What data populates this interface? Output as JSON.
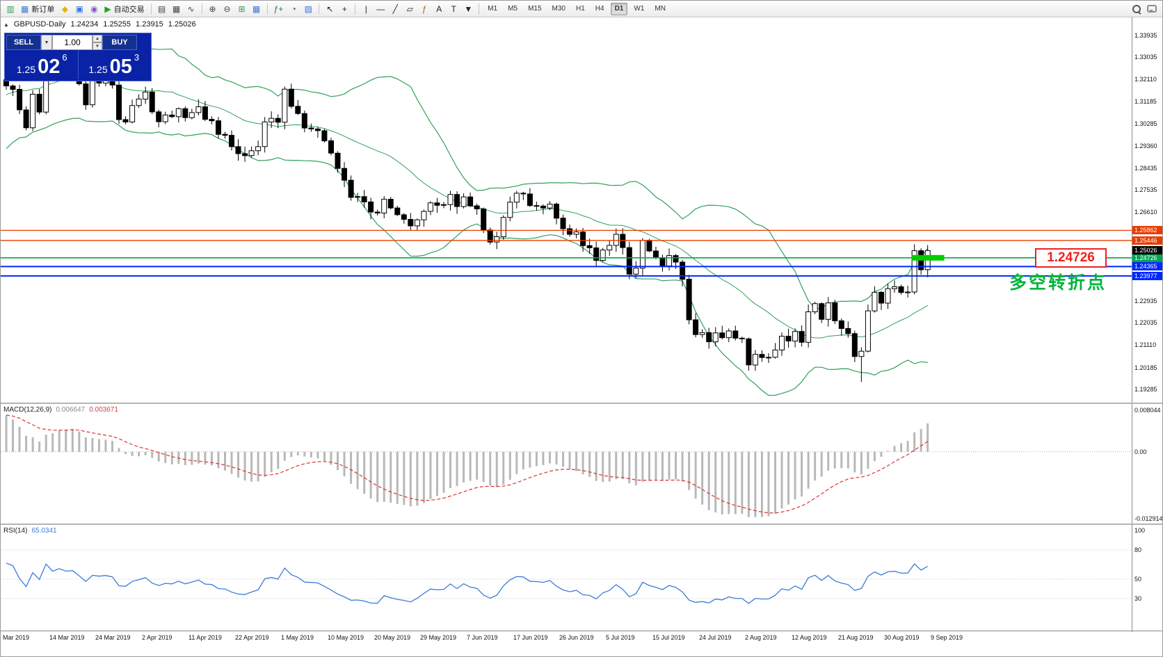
{
  "toolbar": {
    "items": [
      {
        "name": "terminal-icon",
        "glyph": "▥",
        "color": "#2e9e50"
      },
      {
        "name": "new-order-button",
        "glyph": "▦",
        "color": "#3a78d8",
        "label": "新订单"
      },
      {
        "name": "metaeditor-icon",
        "glyph": "◆",
        "color": "#e8b400"
      },
      {
        "name": "market-watch-icon",
        "glyph": "▣",
        "color": "#3a78d8"
      },
      {
        "name": "community-icon",
        "glyph": "◉",
        "color": "#8058c8"
      },
      {
        "name": "autotrading-button",
        "glyph": "▶",
        "color": "#1fa31f",
        "label": "自动交易"
      },
      {
        "type": "sep"
      },
      {
        "name": "bar-chart-icon",
        "glyph": "▤",
        "color": "#444444"
      },
      {
        "name": "candlestick-chart-icon",
        "glyph": "▦",
        "color": "#444444"
      },
      {
        "name": "line-chart-icon",
        "glyph": "∿",
        "color": "#444444"
      },
      {
        "type": "sep"
      },
      {
        "name": "zoom-in-icon",
        "glyph": "⊕",
        "color": "#444444"
      },
      {
        "name": "zoom-out-icon",
        "glyph": "⊖",
        "color": "#444444"
      },
      {
        "name": "grid-icon",
        "glyph": "⊞",
        "color": "#2e9e50"
      },
      {
        "name": "tile-windows-icon",
        "glyph": "▦",
        "color": "#3a78d8"
      },
      {
        "type": "sep"
      },
      {
        "name": "indicators-icon",
        "glyph": "ƒ+",
        "color": "#1e8040"
      },
      {
        "name": "periods-icon",
        "glyph": "◔",
        "color": "#444444"
      },
      {
        "name": "templates-icon",
        "glyph": "▨",
        "color": "#3a78d8"
      },
      {
        "type": "sep"
      },
      {
        "name": "cursor-icon",
        "glyph": "↖",
        "color": "#222222"
      },
      {
        "name": "crosshair-icon",
        "glyph": "+",
        "color": "#222222"
      },
      {
        "type": "sep"
      },
      {
        "name": "vertical-line-icon",
        "glyph": "|",
        "color": "#222222"
      },
      {
        "name": "horizontal-line-icon",
        "glyph": "—",
        "color": "#222222"
      },
      {
        "name": "trendline-icon",
        "glyph": "╱",
        "color": "#222222"
      },
      {
        "name": "channel-icon",
        "glyph": "▱",
        "color": "#222222"
      },
      {
        "name": "fibonacci-icon",
        "glyph": "ƒ",
        "color": "#9a6a10"
      },
      {
        "name": "text-icon",
        "glyph": "A",
        "color": "#222222"
      },
      {
        "name": "label-icon",
        "glyph": "T",
        "color": "#222222"
      },
      {
        "name": "arrows-icon",
        "glyph": "▼",
        "color": "#222222"
      },
      {
        "type": "sep"
      }
    ],
    "timeframes": [
      "M1",
      "M5",
      "M15",
      "M30",
      "H1",
      "H4",
      "D1",
      "W1",
      "MN"
    ],
    "active_timeframe": "D1"
  },
  "chart": {
    "toggle_glyph": "▲",
    "symbol": "GBPUSD-Daily",
    "open": "1.24234",
    "high": "1.25255",
    "low": "1.23915",
    "close": "1.25026"
  },
  "trade_panel": {
    "sell_label": "SELL",
    "buy_label": "BUY",
    "volume": "1.00",
    "dropdown_glyph": "▼",
    "spin_up_glyph": "▲",
    "spin_down_glyph": "▼",
    "sell_price": {
      "prefix": "1.25",
      "big": "02",
      "sup": "6"
    },
    "buy_price": {
      "prefix": "1.25",
      "big": "05",
      "sup": "3"
    }
  },
  "indicators": {
    "macd": {
      "name": "MACD(12,26,9)",
      "main_value": "0.006647",
      "signal_value": "0.003671"
    },
    "rsi": {
      "name": "RSI(14)",
      "value": "65.0341"
    }
  },
  "annotations": {
    "price_callout": "1.24726",
    "note": "多空转折点"
  },
  "levels": [
    {
      "price": 1.25862,
      "label": "1.25862",
      "color": "#e83c00",
      "line_width": 1.3
    },
    {
      "price": 1.25446,
      "label": "1.25446",
      "color": "#e83c00",
      "line_width": 1.3
    },
    {
      "price": 1.24726,
      "label": "1.24726",
      "color": "#00a651",
      "line_width": 1.6
    },
    {
      "price": 1.24365,
      "label": "1.24365",
      "color": "#0026ff",
      "line_width": 2
    },
    {
      "price": 1.23977,
      "label": "1.23977",
      "color": "#0026ff",
      "line_width": 2
    }
  ],
  "current_price_chip": {
    "price": 1.25026,
    "label": "1.25026",
    "color": "#000000"
  },
  "highlight_segment": {
    "price": 1.24726,
    "from_bar": 136.6,
    "to_bar": 141.5,
    "thickness": 8,
    "color": "#00cc00"
  },
  "price_axis": {
    "labels": [
      {
        "text": "1.33935",
        "value": 1.33935
      },
      {
        "text": "1.33035",
        "value": 1.33035
      },
      {
        "text": "1.32110",
        "value": 1.3211
      },
      {
        "text": "1.31185",
        "value": 1.31185
      },
      {
        "text": "1.30285",
        "value": 1.30285
      },
      {
        "text": "1.29360",
        "value": 1.2936
      },
      {
        "text": "1.28435",
        "value": 1.28435
      },
      {
        "text": "1.27535",
        "value": 1.27535
      },
      {
        "text": "1.26610",
        "value": 1.2661
      },
      {
        "text": "1.22935",
        "value": 1.22935
      },
      {
        "text": "1.22035",
        "value": 1.22035
      },
      {
        "text": "1.21110",
        "value": 1.2111
      },
      {
        "text": "1.20185",
        "value": 1.20185
      },
      {
        "text": "1.19285",
        "value": 1.19285
      }
    ]
  },
  "macd_axis": {
    "max": 0.0082,
    "min": -0.0131,
    "labels": [
      {
        "text": "0.008044",
        "value": 0.008044
      },
      {
        "text": "0.00",
        "value": 0
      },
      {
        "text": "-0.012914",
        "value": -0.012914
      }
    ]
  },
  "rsi_axis": {
    "labels": [
      {
        "text": "100",
        "value": 100
      },
      {
        "text": "80",
        "value": 80
      },
      {
        "text": "50",
        "value": 50
      },
      {
        "text": "30",
        "value": 30
      }
    ],
    "levels": [
      80,
      50,
      30
    ]
  },
  "dates": [
    "Mar 2019",
    "14 Mar 2019",
    "24 Mar 2019",
    "2 Apr 2019",
    "11 Apr 2019",
    "22 Apr 2019",
    "1 May 2019",
    "10 May 2019",
    "20 May 2019",
    "29 May 2019",
    "7 Jun 2019",
    "17 Jun 2019",
    "26 Jun 2019",
    "5 Jul 2019",
    "15 Jul 2019",
    "24 Jul 2019",
    "2 Aug 2019",
    "12 Aug 2019",
    "21 Aug 2019",
    "30 Aug 2019",
    "9 Sep 2019"
  ],
  "theme": {
    "bollinger": "#2fa05a",
    "candle_bull": "#ffffff",
    "candle_bear": "#000000",
    "candle_border": "#000000",
    "macd_hist": "#b8b8b8",
    "macd_signal": "#e03030",
    "rsi_line": "#3d7bd6",
    "panel_blue": "#0a22a6"
  },
  "chart_data": {
    "type": "candlestick",
    "symbol": "GBPUSD",
    "timeframe": "Daily",
    "visible_range": {
      "price_top": 1.3445,
      "price_bottom": 1.1885
    },
    "first_open": 1.321,
    "warmup_closes": [
      1.295,
      1.2965,
      1.298,
      1.2995,
      1.301,
      1.303,
      1.3055,
      1.308,
      1.3105,
      1.313,
      1.3155,
      1.318,
      1.321,
      1.324,
      1.327,
      1.33,
      1.332,
      1.329,
      1.325,
      1.321
    ],
    "closes": [
      1.3184,
      1.317,
      1.3085,
      1.3011,
      1.315,
      1.3076,
      1.3332,
      1.3237,
      1.329,
      1.3255,
      1.3266,
      1.3193,
      1.3106,
      1.3208,
      1.3196,
      1.3207,
      1.3188,
      1.3045,
      1.3035,
      1.3103,
      1.313,
      1.3159,
      1.3077,
      1.3036,
      1.3064,
      1.3057,
      1.309,
      1.3053,
      1.3074,
      1.3098,
      1.3046,
      1.304,
      1.2984,
      1.298,
      1.2933,
      1.2904,
      1.2896,
      1.2916,
      1.2933,
      1.3035,
      1.305,
      1.3034,
      1.3171,
      1.31,
      1.307,
      1.301,
      1.3006,
      1.2999,
      1.2957,
      1.2906,
      1.2843,
      1.2794,
      1.2723,
      1.2726,
      1.2704,
      1.2662,
      1.2658,
      1.2715,
      1.2679,
      1.2651,
      1.2632,
      1.2605,
      1.263,
      1.2665,
      1.27,
      1.269,
      1.2693,
      1.2735,
      1.2685,
      1.2725,
      1.2688,
      1.2675,
      1.2588,
      1.2538,
      1.256,
      1.264,
      1.2703,
      1.274,
      1.2737,
      1.2689,
      1.2687,
      1.2679,
      1.2695,
      1.2637,
      1.2593,
      1.257,
      1.258,
      1.2523,
      1.2514,
      1.2462,
      1.2505,
      1.2524,
      1.257,
      1.2515,
      1.2405,
      1.243,
      1.2545,
      1.2501,
      1.2474,
      1.2439,
      1.2482,
      1.2455,
      1.2384,
      1.2216,
      1.2155,
      1.2163,
      1.2125,
      1.2162,
      1.2142,
      1.217,
      1.214,
      1.2137,
      1.2029,
      1.2073,
      1.206,
      1.2061,
      1.2091,
      1.2148,
      1.2128,
      1.2168,
      1.2123,
      1.2249,
      1.2283,
      1.2218,
      1.2286,
      1.2212,
      1.218,
      1.2159,
      1.2064,
      1.2086,
      1.2253,
      1.233,
      1.2285,
      1.2345,
      1.2353,
      1.2329,
      1.2331,
      1.2502,
      1.2423,
      1.25026
    ],
    "forced_wicks": [
      {
        "i": 6,
        "h": 1.3381
      },
      {
        "i": 129,
        "l": 1.1959
      }
    ],
    "last_candle_ohlc": [
      1.24234,
      1.25255,
      1.23915,
      1.25026
    ],
    "indicators": {
      "bollinger": {
        "period": 20,
        "deviation": 2
      },
      "macd": {
        "fast": 12,
        "slow": 26,
        "signal": 9
      },
      "rsi": {
        "period": 14
      }
    }
  }
}
